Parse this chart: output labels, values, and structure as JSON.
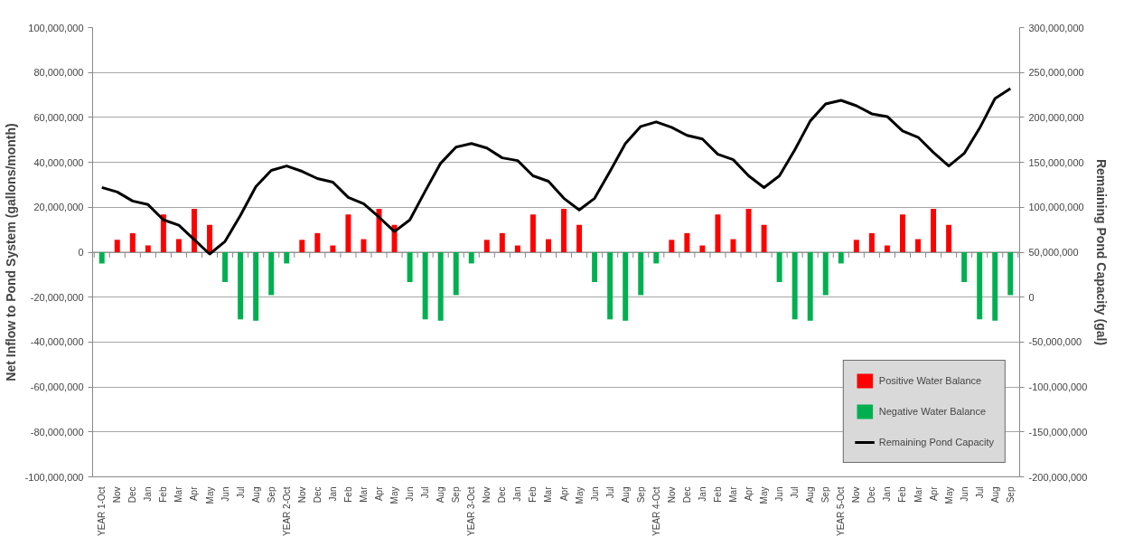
{
  "chart_data": {
    "type": "bar",
    "ylabel": "Net Inflow to Pond System (gallons/month)",
    "y2label": "Remaining Pond Capacity (gal)",
    "categories": [
      "YEAR 1-Oct",
      "Nov",
      "Dec",
      "Jan",
      "Feb",
      "Mar",
      "Apr",
      "May",
      "Jun",
      "Jul",
      "Aug",
      "Sep",
      "YEAR 2-Oct",
      "Nov",
      "Dec",
      "Jan",
      "Feb",
      "Mar",
      "Apr",
      "May",
      "Jun",
      "Jul",
      "Aug",
      "Sep",
      "YEAR 3-Oct",
      "Nov",
      "Dec",
      "Jan",
      "Feb",
      "Mar",
      "Apr",
      "May",
      "Jun",
      "Jul",
      "Aug",
      "Sep",
      "YEAR 4-Oct",
      "Nov",
      "Dec",
      "Jan",
      "Feb",
      "Mar",
      "Apr",
      "May",
      "Jun",
      "Jul",
      "Aug",
      "Sep",
      "YEAR 5-Oct",
      "Nov",
      "Dec",
      "Jan",
      "Feb",
      "Mar",
      "Apr",
      "May",
      "Jun",
      "Jul",
      "Aug",
      "Sep"
    ],
    "series": [
      {
        "name": "Positive Water Balance",
        "color": "#ff0000",
        "values": [
          null,
          5500000,
          8500000,
          3000000,
          16800000,
          5800000,
          19300000,
          12200000,
          null,
          null,
          null,
          null,
          null,
          5500000,
          8500000,
          3000000,
          16800000,
          5800000,
          19300000,
          12200000,
          null,
          null,
          null,
          null,
          null,
          5500000,
          8500000,
          3000000,
          16800000,
          5800000,
          19300000,
          12200000,
          null,
          null,
          null,
          null,
          null,
          5500000,
          8500000,
          3000000,
          16800000,
          5800000,
          19300000,
          12200000,
          null,
          null,
          null,
          null,
          null,
          5500000,
          8500000,
          3000000,
          16800000,
          5800000,
          19300000,
          12200000,
          null,
          null,
          null,
          null
        ]
      },
      {
        "name": "Negative Water Balance",
        "color": "#00b050",
        "values": [
          -5000000,
          null,
          null,
          null,
          null,
          null,
          null,
          null,
          -13300000,
          -29900000,
          -30500000,
          -19100000,
          -5000000,
          null,
          null,
          null,
          null,
          null,
          null,
          null,
          -13300000,
          -29900000,
          -30500000,
          -19100000,
          -5000000,
          null,
          null,
          null,
          null,
          null,
          null,
          null,
          -13300000,
          -29900000,
          -30500000,
          -19100000,
          -5000000,
          null,
          null,
          null,
          null,
          null,
          null,
          null,
          -13300000,
          -29900000,
          -30500000,
          -19100000,
          -5000000,
          null,
          null,
          null,
          null,
          null,
          null,
          null,
          -13300000,
          -29900000,
          -30500000,
          -19100000
        ]
      },
      {
        "name": "Remaining Pond Capacity",
        "type": "line",
        "axis": "y2",
        "color": "#000000",
        "values": [
          122000000,
          117000000,
          107000000,
          103000000,
          86000000,
          80000000,
          64000000,
          48000000,
          62000000,
          91000000,
          123000000,
          141000000,
          146000000,
          140000000,
          132000000,
          128000000,
          111000000,
          104000000,
          89000000,
          73000000,
          86000000,
          118000000,
          149000000,
          167000000,
          171000000,
          166000000,
          155000000,
          152000000,
          135000000,
          129000000,
          110000000,
          97000000,
          110000000,
          140000000,
          171000000,
          190000000,
          195000000,
          189000000,
          180000000,
          176000000,
          159000000,
          153000000,
          135000000,
          122000000,
          135000000,
          164000000,
          196000000,
          215000000,
          219000000,
          213000000,
          204000000,
          201000000,
          185000000,
          178000000,
          161000000,
          146000000,
          160000000,
          188000000,
          221000000,
          232000000
        ]
      }
    ],
    "ylim": [
      -100000000,
      100000000
    ],
    "yticks": [
      {
        "value": -100000000,
        "label": "-100,000,000"
      },
      {
        "value": -80000000,
        "label": "-80,000,000"
      },
      {
        "value": -60000000,
        "label": "-60,000,000"
      },
      {
        "value": -40000000,
        "label": "-40,000,000"
      },
      {
        "value": -20000000,
        "label": "-20,000,000"
      },
      0,
      {
        "value": 20000000,
        "label": "20,000,000"
      },
      {
        "value": 40000000,
        "label": "40,000,000"
      },
      {
        "value": 60000000,
        "label": "60,000,000"
      },
      {
        "value": 80000000,
        "label": "80,000,000"
      },
      {
        "value": 100000000,
        "label": "100,000,000"
      }
    ],
    "y2lim": [
      -200000000,
      300000000
    ],
    "y2ticks": [
      {
        "value": -200000000,
        "label": "-200,000,000"
      },
      {
        "value": -150000000,
        "label": "-150,000,000"
      },
      {
        "value": -100000000,
        "label": "-100,000,000"
      },
      {
        "value": -50000000,
        "label": "-50,000,000"
      },
      0,
      {
        "value": 50000000,
        "label": "50,000,000"
      },
      {
        "value": 100000000,
        "label": "100,000,000"
      },
      {
        "value": 150000000,
        "label": "150,000,000"
      },
      {
        "value": 200000000,
        "label": "200,000,000"
      },
      {
        "value": 250000000,
        "label": "250,000,000"
      },
      {
        "value": 300000000,
        "label": "300,000,000"
      }
    ],
    "grid": "y",
    "legend": "bottom right"
  }
}
